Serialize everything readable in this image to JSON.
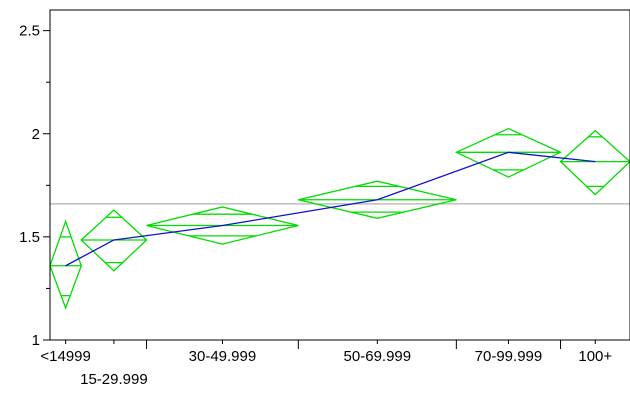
{
  "chart_data": {
    "type": "diamond",
    "categories": [
      "<14999",
      "15-29.999",
      "30-49.999",
      "50-69.999",
      "70-99.999",
      "100+"
    ],
    "category_bounds": [
      0,
      0.09,
      0.278,
      0.715,
      1.17,
      1.47,
      1.67
    ],
    "means": [
      1.36,
      1.485,
      1.555,
      1.68,
      1.91,
      1.865
    ],
    "ci_upper": [
      1.575,
      1.63,
      1.645,
      1.77,
      2.025,
      2.015
    ],
    "ci_lower": [
      1.155,
      1.335,
      1.465,
      1.59,
      1.79,
      1.705
    ],
    "overlap_upper": [
      1.215,
      1.375,
      1.505,
      1.62,
      1.825,
      1.745
    ],
    "overlap_lower": [
      1.5,
      1.595,
      1.61,
      1.745,
      1.995,
      1.985
    ],
    "grand_mean": 1.66,
    "ylim": [
      1,
      2.6
    ],
    "yticks": [
      1,
      1.5,
      2,
      2.5
    ],
    "ytick_labels": [
      "1",
      "1.5",
      "2",
      "2.5"
    ],
    "y_minor_ticks": [
      1.25,
      1.75,
      2.25
    ],
    "x_separators": [
      0.278,
      0.715,
      1.17,
      1.47
    ],
    "colors": {
      "diamond": "#00dd00",
      "mean_line": "#1010d0",
      "grand_mean": "#b0b0b0",
      "axis": "#000000"
    }
  }
}
